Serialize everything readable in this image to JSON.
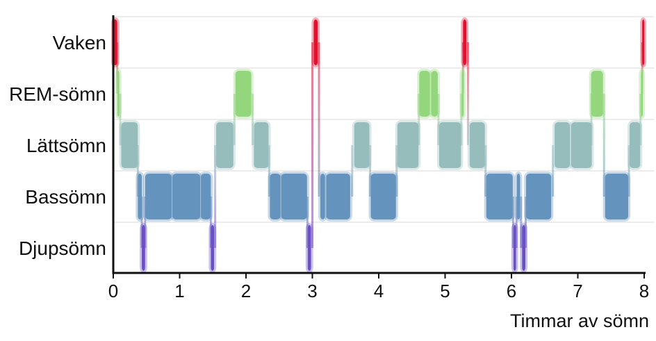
{
  "chart_data": {
    "type": "sleep-hypnogram",
    "xlabel": "Timmar av sömn",
    "xlim": [
      0,
      8
    ],
    "x_ticks": [
      "0",
      "1",
      "2",
      "3",
      "4",
      "5",
      "6",
      "7",
      "8"
    ],
    "stages": [
      "Vaken",
      "REM-sömn",
      "Lättsömn",
      "Bassömn",
      "Djupsömn"
    ],
    "colors": {
      "Vaken": "#e0102f",
      "REM-sömn": "#93d67c",
      "Lättsömn": "#97bcbc",
      "Bassömn": "#6493bd",
      "Djupsömn": "#6b4fc4"
    },
    "segments": [
      {
        "stage": "Vaken",
        "start": 0.0,
        "end": 0.06
      },
      {
        "stage": "REM-sömn",
        "start": 0.06,
        "end": 0.09
      },
      {
        "stage": "Lättsömn",
        "start": 0.12,
        "end": 0.37
      },
      {
        "stage": "Bassömn",
        "start": 0.37,
        "end": 0.43
      },
      {
        "stage": "Djupsömn",
        "start": 0.43,
        "end": 0.48
      },
      {
        "stage": "Bassömn",
        "start": 0.48,
        "end": 0.88
      },
      {
        "stage": "Bassömn",
        "start": 0.89,
        "end": 1.31
      },
      {
        "stage": "Bassömn",
        "start": 1.32,
        "end": 1.47
      },
      {
        "stage": "Djupsömn",
        "start": 1.47,
        "end": 1.52
      },
      {
        "stage": "Lättsömn",
        "start": 1.55,
        "end": 1.81
      },
      {
        "stage": "REM-sömn",
        "start": 1.84,
        "end": 2.08
      },
      {
        "stage": "Lättsömn",
        "start": 2.12,
        "end": 2.34
      },
      {
        "stage": "Bassömn",
        "start": 2.36,
        "end": 2.52
      },
      {
        "stage": "Bassömn",
        "start": 2.53,
        "end": 2.92
      },
      {
        "stage": "Djupsömn",
        "start": 2.93,
        "end": 2.98
      },
      {
        "stage": "Vaken",
        "start": 3.02,
        "end": 3.08
      },
      {
        "stage": "Bassömn",
        "start": 3.12,
        "end": 3.19
      },
      {
        "stage": "Bassömn",
        "start": 3.21,
        "end": 3.57
      },
      {
        "stage": "Lättsömn",
        "start": 3.63,
        "end": 3.86
      },
      {
        "stage": "Bassömn",
        "start": 3.88,
        "end": 4.26
      },
      {
        "stage": "Lättsömn",
        "start": 4.28,
        "end": 4.6
      },
      {
        "stage": "REM-sömn",
        "start": 4.61,
        "end": 4.77
      },
      {
        "stage": "REM-sömn",
        "start": 4.79,
        "end": 4.89
      },
      {
        "stage": "Lättsömn",
        "start": 4.91,
        "end": 5.24
      },
      {
        "stage": "REM-sömn",
        "start": 5.25,
        "end": 5.27
      },
      {
        "stage": "Vaken",
        "start": 5.27,
        "end": 5.32
      },
      {
        "stage": "Lättsömn",
        "start": 5.37,
        "end": 5.6
      },
      {
        "stage": "Bassömn",
        "start": 5.62,
        "end": 6.02
      },
      {
        "stage": "Djupsömn",
        "start": 6.03,
        "end": 6.07
      },
      {
        "stage": "Bassömn",
        "start": 6.08,
        "end": 6.13
      },
      {
        "stage": "Djupsömn",
        "start": 6.16,
        "end": 6.21
      },
      {
        "stage": "Bassömn",
        "start": 6.22,
        "end": 6.6
      },
      {
        "stage": "Lättsömn",
        "start": 6.65,
        "end": 6.88
      },
      {
        "stage": "Lättsömn",
        "start": 6.9,
        "end": 7.21
      },
      {
        "stage": "REM-sömn",
        "start": 7.2,
        "end": 7.38
      },
      {
        "stage": "Bassömn",
        "start": 7.41,
        "end": 7.76
      },
      {
        "stage": "Lättsömn",
        "start": 7.78,
        "end": 7.94
      },
      {
        "stage": "REM-sömn",
        "start": 7.95,
        "end": 7.97
      },
      {
        "stage": "Vaken",
        "start": 7.97,
        "end": 8.0
      }
    ],
    "grid": true
  }
}
